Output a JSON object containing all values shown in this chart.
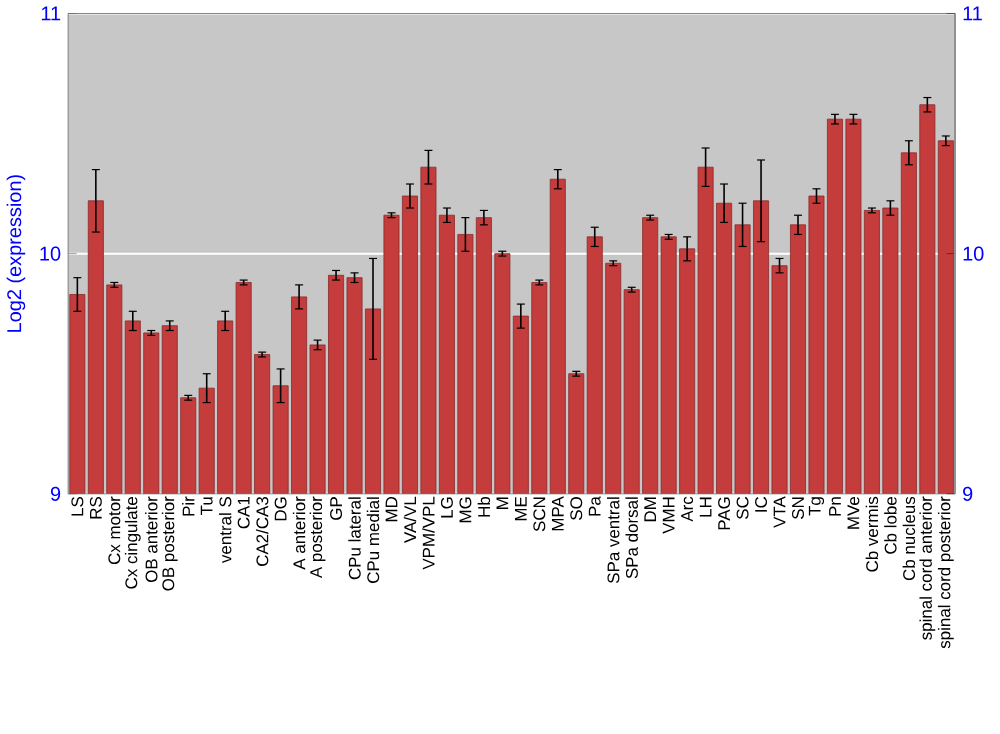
{
  "chart_data": {
    "type": "bar",
    "ylabel": "Log2 (expression)",
    "categories": [
      "LS",
      "RS",
      "Cx motor",
      "Cx cingulate",
      "OB anterior",
      "OB posterior",
      "Pir",
      "Tu",
      "ventral S",
      "CA1",
      "CA2/CA3",
      "DG",
      "A anterior",
      "A posterior",
      "GP",
      "CPu lateral",
      "CPu medial",
      "MD",
      "VA/VL",
      "VPM/VPL",
      "LG",
      "MG",
      "Hb",
      "M",
      "ME",
      "SCN",
      "MPA",
      "SO",
      "Pa",
      "SPa ventral",
      "SPa dorsal",
      "DM",
      "VMH",
      "Arc",
      "LH",
      "PAG",
      "SC",
      "IC",
      "VTA",
      "SN",
      "Tg",
      "Pn",
      "MVe",
      "Cb vermis",
      "Cb lobe",
      "Cb nucleus",
      "spinal cord anterior",
      "spinal cord posterior"
    ],
    "values": [
      9.83,
      10.22,
      9.87,
      9.72,
      9.67,
      9.7,
      9.4,
      9.44,
      9.72,
      9.88,
      9.58,
      9.45,
      9.82,
      9.62,
      9.91,
      9.9,
      9.77,
      10.16,
      10.24,
      10.36,
      10.16,
      10.08,
      10.15,
      10.0,
      9.74,
      9.88,
      10.31,
      9.5,
      10.07,
      9.96,
      9.85,
      10.15,
      10.07,
      10.02,
      10.36,
      10.21,
      10.12,
      10.22,
      9.95,
      10.12,
      10.24,
      10.56,
      10.56,
      10.18,
      10.19,
      10.42,
      10.62,
      10.47
    ],
    "errors": [
      0.07,
      0.13,
      0.01,
      0.04,
      0.01,
      0.02,
      0.01,
      0.06,
      0.04,
      0.01,
      0.01,
      0.07,
      0.05,
      0.02,
      0.02,
      0.02,
      0.21,
      0.01,
      0.05,
      0.07,
      0.03,
      0.07,
      0.03,
      0.01,
      0.05,
      0.01,
      0.04,
      0.01,
      0.04,
      0.01,
      0.01,
      0.01,
      0.01,
      0.05,
      0.08,
      0.08,
      0.09,
      0.17,
      0.03,
      0.04,
      0.03,
      0.02,
      0.02,
      0.01,
      0.03,
      0.05,
      0.03,
      0.02
    ],
    "color": "#c43c3c",
    "ylim": [
      9,
      11
    ],
    "yticks": [
      9,
      10,
      11
    ],
    "y2lim": [
      9,
      11
    ],
    "y2ticks": [
      9,
      10,
      11
    ],
    "grid": "y"
  }
}
